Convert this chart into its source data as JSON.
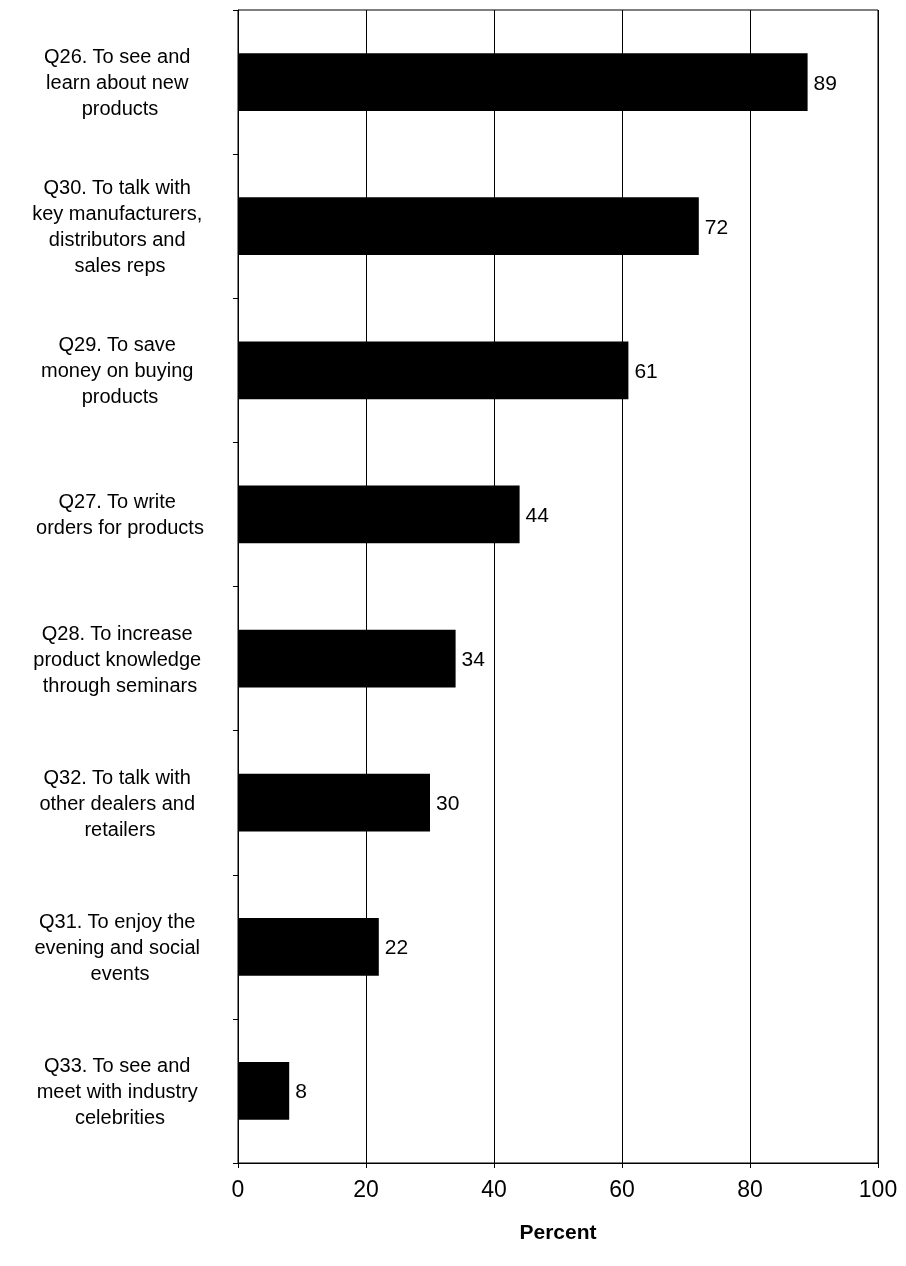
{
  "chart_data": {
    "type": "bar",
    "orientation": "horizontal",
    "xlabel": "Percent",
    "categories": [
      "Q26. To see and learn about new products",
      "Q30. To talk with key manufacturers, distributors and sales reps",
      "Q29. To save money on buying products",
      "Q27. To write orders for products",
      "Q28. To increase product knowledge through seminars",
      "Q32. To talk with other dealers and retailers",
      "Q31. To enjoy the evening and social events",
      "Q33. To see and meet with industry celebrities"
    ],
    "values": [
      89,
      72,
      61,
      44,
      34,
      30,
      22,
      8
    ],
    "color": "#000000",
    "data_labels": true,
    "xlim": [
      0,
      100
    ],
    "xticks": [
      0,
      20,
      40,
      60,
      80,
      100
    ],
    "grid": "x"
  }
}
